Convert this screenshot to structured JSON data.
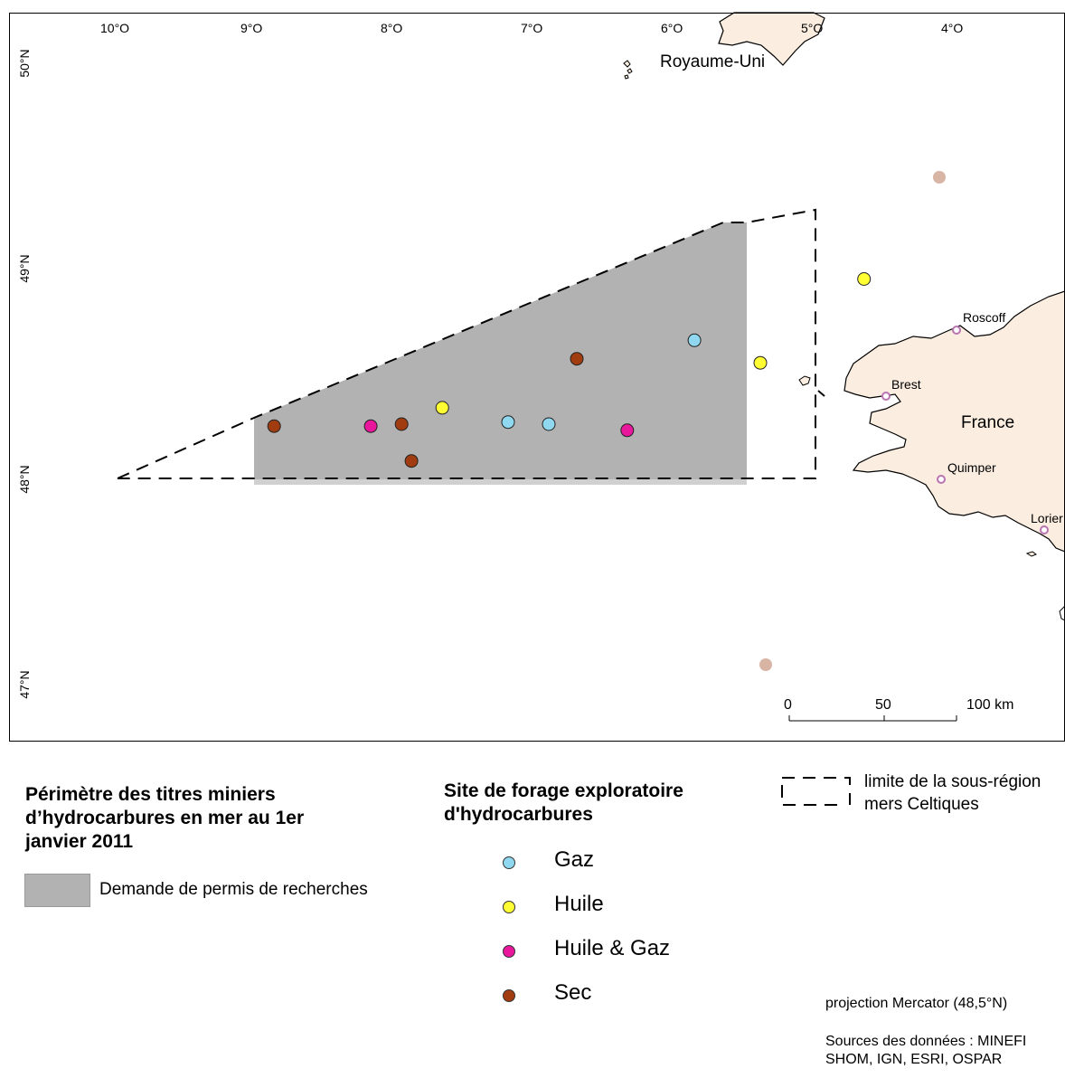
{
  "lat_labels": [
    "50°N",
    "49°N",
    "48°N",
    "47°N"
  ],
  "lon_labels": [
    "10°O",
    "9°O",
    "8°O",
    "7°O",
    "6°O",
    "5°O",
    "4°O"
  ],
  "place_labels": {
    "uk": "Royaume-Uni",
    "france": "France",
    "roscoff": "Roscoff",
    "brest": "Brest",
    "quimper": "Quimper",
    "lorient": "Lorier"
  },
  "scale_bar": {
    "labels": [
      "0",
      "50",
      "100 km"
    ]
  },
  "legend": {
    "permit_title": "Périmètre des titres miniers d’hydrocarbures en mer au 1er janvier 2011",
    "permit_item": "Demande de permis de recherches",
    "sites_title": "Site de forage exploratoire d'hydrocarbures",
    "site_items": [
      {
        "label": "Gaz",
        "color": "#8fd8ef"
      },
      {
        "label": "Huile",
        "color": "#ffff33"
      },
      {
        "label": "Huile & Gaz",
        "color": "#e8179c"
      },
      {
        "label": "Sec",
        "color": "#a03c10"
      }
    ],
    "boundary_label_1": "limite de la sous-région",
    "boundary_label_2": "mers Celtiques",
    "projection": "projection Mercator (48,5°N)",
    "sources_1": "Sources des données : MINEFI",
    "sources_2": "SHOM, IGN, ESRI, OSPAR"
  },
  "wells": [
    {
      "type": "Sec",
      "lon": -8.87,
      "lat": 48.26
    },
    {
      "type": "Huile & Gaz",
      "lon": -8.18,
      "lat": 48.26
    },
    {
      "type": "Sec",
      "lon": -7.96,
      "lat": 48.27
    },
    {
      "type": "Sec",
      "lon": -7.89,
      "lat": 48.09
    },
    {
      "type": "Huile",
      "lon": -7.67,
      "lat": 48.35
    },
    {
      "type": "Gaz",
      "lon": -7.2,
      "lat": 48.28
    },
    {
      "type": "Gaz",
      "lon": -6.91,
      "lat": 48.27
    },
    {
      "type": "Sec",
      "lon": -6.71,
      "lat": 48.59
    },
    {
      "type": "Huile & Gaz",
      "lon": -6.35,
      "lat": 48.24
    },
    {
      "type": "Gaz",
      "lon": -5.87,
      "lat": 48.68
    },
    {
      "type": "Huile",
      "lon": -5.4,
      "lat": 48.57
    },
    {
      "type": "Huile",
      "lon": -4.66,
      "lat": 48.98
    }
  ],
  "colors": {
    "land": "#fbeee0",
    "permit": "#b2b2b2",
    "port": "#b874b0",
    "faded_dot": "#d8b4a4"
  }
}
